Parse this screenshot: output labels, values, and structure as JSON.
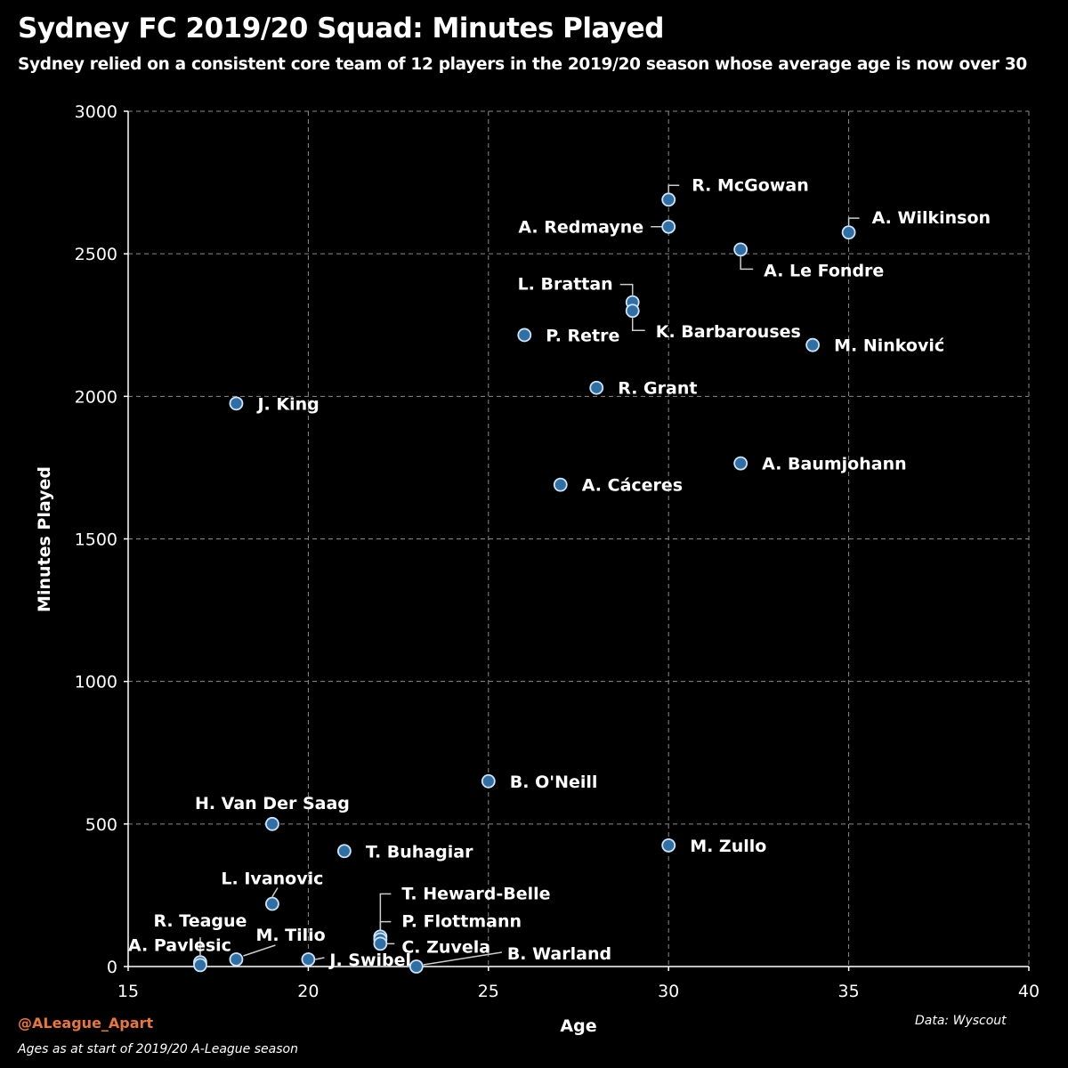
{
  "title": "Sydney FC 2019/20 Squad: Minutes Played",
  "subtitle": "Sydney relied on a consistent core team of 12 players in the 2019/20 season whose average age is now over 30",
  "footer": {
    "handle": "@ALeague_Apart",
    "note": "Ages as at start of 2019/20 A-League season",
    "source": "Data: Wyscout"
  },
  "colors": {
    "background": "#000000",
    "point_fill": "#2e6fa6",
    "point_stroke": "#cfe3f5",
    "handle": "#e8773a"
  },
  "chart_data": {
    "type": "scatter",
    "title": "Sydney FC 2019/20 Squad: Minutes Played",
    "xlabel": "Age",
    "ylabel": "Minutes Played",
    "xlim": [
      15,
      40
    ],
    "ylim": [
      0,
      3000
    ],
    "xticks": [
      15,
      20,
      25,
      30,
      35,
      40
    ],
    "yticks": [
      0,
      500,
      1000,
      1500,
      2000,
      2500,
      3000
    ],
    "grid": true,
    "points": [
      {
        "label": "R. McGowan",
        "x": 30,
        "y": 2690,
        "label_pos": "upper-right",
        "leader": true
      },
      {
        "label": "A. Redmayne",
        "x": 30,
        "y": 2595,
        "label_pos": "left",
        "leader": true
      },
      {
        "label": "A. Wilkinson",
        "x": 35,
        "y": 2575,
        "label_pos": "upper-right",
        "leader": true
      },
      {
        "label": "A. Le Fondre",
        "x": 32,
        "y": 2515,
        "label_pos": "lower-right",
        "leader": true
      },
      {
        "label": "L. Brattan",
        "x": 29,
        "y": 2330,
        "label_pos": "upper-left",
        "leader": true
      },
      {
        "label": "K. Barbarouses",
        "x": 29,
        "y": 2300,
        "label_pos": "lower-right",
        "leader": true
      },
      {
        "label": "P. Retre",
        "x": 26,
        "y": 2215,
        "label_pos": "right",
        "leader": false
      },
      {
        "label": "M. Ninković",
        "x": 34,
        "y": 2180,
        "label_pos": "right",
        "leader": false
      },
      {
        "label": "R. Grant",
        "x": 28,
        "y": 2030,
        "label_pos": "right",
        "leader": false
      },
      {
        "label": "J. King",
        "x": 18,
        "y": 1975,
        "label_pos": "right",
        "leader": false
      },
      {
        "label": "A. Baumjohann",
        "x": 32,
        "y": 1765,
        "label_pos": "right",
        "leader": false
      },
      {
        "label": "A. Cáceres",
        "x": 27,
        "y": 1690,
        "label_pos": "right",
        "leader": false
      },
      {
        "label": "B. O'Neill",
        "x": 25,
        "y": 650,
        "label_pos": "right",
        "leader": false
      },
      {
        "label": "H. Van Der Saag",
        "x": 19,
        "y": 500,
        "label_pos": "above",
        "leader": false
      },
      {
        "label": "M. Zullo",
        "x": 30,
        "y": 425,
        "label_pos": "right",
        "leader": false
      },
      {
        "label": "T. Buhagiar",
        "x": 21,
        "y": 405,
        "label_pos": "right",
        "leader": false
      },
      {
        "label": "L. Ivanovic",
        "x": 19,
        "y": 220,
        "label_pos": "above",
        "leader": true
      },
      {
        "label": "T. Heward-Belle",
        "x": 22,
        "y": 105,
        "label_pos": "upper-right",
        "leader": true
      },
      {
        "label": "P. Flottmann",
        "x": 22,
        "y": 95,
        "label_pos": "upper-right",
        "leader": true
      },
      {
        "label": "C. Zuvela",
        "x": 22,
        "y": 80,
        "label_pos": "right",
        "leader": true
      },
      {
        "label": "R. Teague",
        "x": 17,
        "y": 15,
        "label_pos": "above",
        "leader": true
      },
      {
        "label": "A. Pavlesic",
        "x": 17,
        "y": 5,
        "label_pos": "upper-left",
        "leader": true
      },
      {
        "label": "M. Tilio",
        "x": 18,
        "y": 25,
        "label_pos": "upper-right",
        "leader": true
      },
      {
        "label": "J. Swibel",
        "x": 20,
        "y": 25,
        "label_pos": "right",
        "leader": true
      },
      {
        "label": "B. Warland",
        "x": 23,
        "y": 0,
        "label_pos": "upper-right",
        "leader": true
      }
    ]
  }
}
